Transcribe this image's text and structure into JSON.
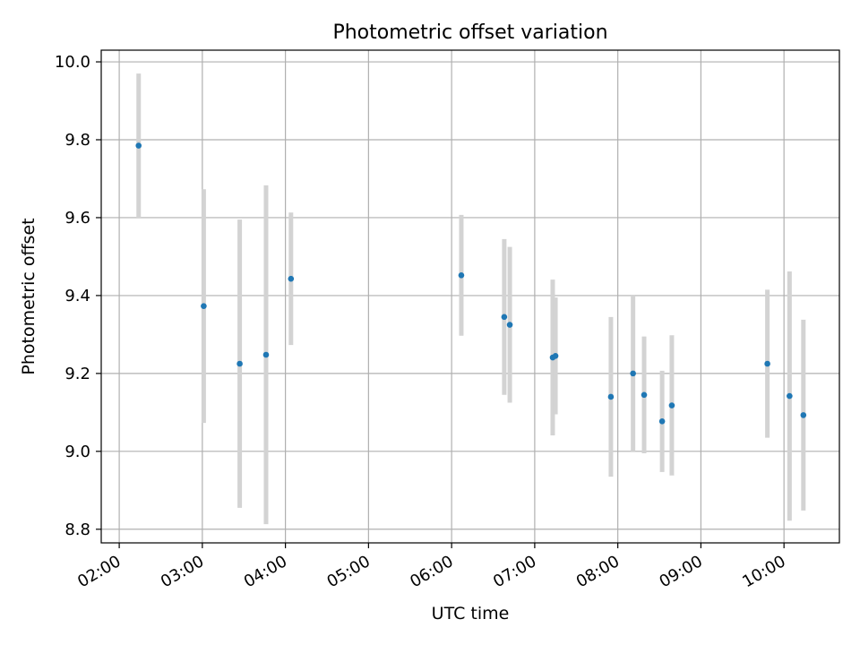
{
  "chart_data": {
    "type": "scatter",
    "title": "Photometric offset variation",
    "xlabel": "UTC time",
    "ylabel": "Photometric offset",
    "grid": true,
    "xlim": [
      "01:47",
      "10:40"
    ],
    "ylim": [
      8.765,
      10.03
    ],
    "x_ticks": [
      "02:00",
      "03:00",
      "04:00",
      "05:00",
      "06:00",
      "07:00",
      "08:00",
      "09:00",
      "10:00"
    ],
    "y_ticks": [
      "8.8",
      "9.0",
      "9.2",
      "9.4",
      "9.6",
      "9.8",
      "10.0"
    ],
    "colors": {
      "point": "#1f77b4",
      "errorbar": "#d3d3d3",
      "grid": "#b0b0b0"
    },
    "points": [
      {
        "x": "02:14",
        "y": 9.785,
        "yerr": 0.185
      },
      {
        "x": "03:01",
        "y": 9.373,
        "yerr": 0.3
      },
      {
        "x": "03:27",
        "y": 9.225,
        "yerr": 0.37
      },
      {
        "x": "03:46",
        "y": 9.248,
        "yerr": 0.435
      },
      {
        "x": "04:04",
        "y": 9.443,
        "yerr": 0.17
      },
      {
        "x": "06:07",
        "y": 9.452,
        "yerr": 0.155
      },
      {
        "x": "06:38",
        "y": 9.345,
        "yerr": 0.2
      },
      {
        "x": "06:42",
        "y": 9.325,
        "yerr": 0.2
      },
      {
        "x": "07:13",
        "y": 9.241,
        "yerr": 0.2
      },
      {
        "x": "07:15",
        "y": 9.245,
        "yerr": 0.15
      },
      {
        "x": "07:55",
        "y": 9.14,
        "yerr": 0.205
      },
      {
        "x": "08:11",
        "y": 9.2,
        "yerr": 0.2
      },
      {
        "x": "08:19",
        "y": 9.145,
        "yerr": 0.15
      },
      {
        "x": "08:32",
        "y": 9.077,
        "yerr": 0.13
      },
      {
        "x": "08:39",
        "y": 9.118,
        "yerr": 0.18
      },
      {
        "x": "09:48",
        "y": 9.225,
        "yerr": 0.19
      },
      {
        "x": "10:04",
        "y": 9.142,
        "yerr": 0.32
      },
      {
        "x": "10:14",
        "y": 9.093,
        "yerr": 0.245
      }
    ]
  }
}
